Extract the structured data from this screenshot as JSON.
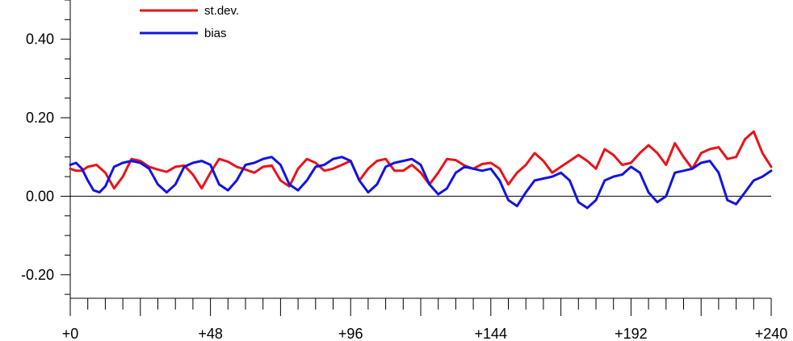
{
  "chart_data": {
    "type": "line",
    "x_tick_labels": [
      "+0",
      "+48",
      "+96",
      "+144",
      "+192",
      "+240"
    ],
    "x_tick_values": [
      0,
      48,
      96,
      144,
      192,
      240
    ],
    "xlim": [
      0,
      240
    ],
    "y_tick_labels": [
      "0.40",
      "0.20",
      "0.00",
      "-0.20"
    ],
    "y_tick_values": [
      0.4,
      0.2,
      0.0,
      -0.2
    ],
    "ylim": [
      -0.26,
      0.5
    ],
    "zero_line": true,
    "legend_position": "top-left",
    "series": [
      {
        "name": "st.dev.",
        "color": "#e8141b",
        "x": [
          0,
          2,
          4,
          6,
          9,
          12,
          15,
          18,
          21,
          24,
          27,
          30,
          33,
          36,
          39,
          42,
          45,
          48,
          51,
          54,
          57,
          60,
          63,
          66,
          69,
          72,
          75,
          78,
          81,
          84,
          87,
          90,
          93,
          96,
          99,
          102,
          105,
          108,
          111,
          114,
          117,
          120,
          123,
          126,
          129,
          132,
          135,
          138,
          141,
          144,
          147,
          150,
          153,
          156,
          159,
          162,
          165,
          168,
          171,
          174,
          177,
          180,
          183,
          186,
          189,
          192,
          195,
          198,
          201,
          204,
          207,
          210,
          213,
          216,
          219,
          222,
          225,
          228,
          231,
          234,
          237,
          240
        ],
        "y": [
          0.07,
          0.065,
          0.065,
          0.075,
          0.08,
          0.06,
          0.02,
          0.05,
          0.095,
          0.09,
          0.075,
          0.068,
          0.062,
          0.075,
          0.078,
          0.055,
          0.02,
          0.06,
          0.095,
          0.088,
          0.075,
          0.068,
          0.06,
          0.075,
          0.078,
          0.04,
          0.025,
          0.07,
          0.095,
          0.085,
          0.065,
          0.07,
          0.08,
          0.09,
          0.04,
          0.07,
          0.09,
          0.095,
          0.065,
          0.065,
          0.08,
          0.06,
          0.03,
          0.06,
          0.095,
          0.092,
          0.078,
          0.07,
          0.082,
          0.085,
          0.07,
          0.03,
          0.06,
          0.08,
          0.11,
          0.09,
          0.06,
          0.075,
          0.09,
          0.105,
          0.09,
          0.07,
          0.12,
          0.105,
          0.08,
          0.085,
          0.11,
          0.13,
          0.11,
          0.08,
          0.135,
          0.1,
          0.07,
          0.11,
          0.12,
          0.125,
          0.095,
          0.1,
          0.145,
          0.165,
          0.11,
          0.075
        ]
      },
      {
        "name": "bias",
        "color": "#1414e0",
        "x": [
          0,
          2,
          4,
          6,
          8,
          10,
          12,
          15,
          18,
          21,
          24,
          27,
          30,
          33,
          36,
          39,
          42,
          45,
          48,
          51,
          54,
          57,
          60,
          63,
          66,
          69,
          72,
          75,
          78,
          81,
          84,
          87,
          90,
          93,
          96,
          99,
          102,
          105,
          108,
          111,
          114,
          117,
          120,
          123,
          126,
          129,
          132,
          135,
          138,
          141,
          144,
          147,
          150,
          153,
          156,
          159,
          162,
          165,
          168,
          171,
          174,
          177,
          180,
          183,
          186,
          189,
          192,
          195,
          198,
          201,
          204,
          207,
          210,
          213,
          216,
          219,
          222,
          225,
          228,
          231,
          234,
          237,
          240
        ],
        "y": [
          0.08,
          0.085,
          0.07,
          0.04,
          0.015,
          0.01,
          0.025,
          0.075,
          0.085,
          0.09,
          0.085,
          0.07,
          0.03,
          0.01,
          0.03,
          0.075,
          0.085,
          0.09,
          0.08,
          0.03,
          0.015,
          0.04,
          0.08,
          0.085,
          0.095,
          0.1,
          0.08,
          0.03,
          0.015,
          0.04,
          0.075,
          0.08,
          0.095,
          0.1,
          0.09,
          0.04,
          0.01,
          0.03,
          0.075,
          0.085,
          0.09,
          0.095,
          0.08,
          0.03,
          0.005,
          0.02,
          0.06,
          0.075,
          0.07,
          0.065,
          0.07,
          0.04,
          -0.01,
          -0.025,
          0.01,
          0.04,
          0.045,
          0.05,
          0.06,
          0.04,
          -0.015,
          -0.03,
          -0.01,
          0.04,
          0.05,
          0.055,
          0.075,
          0.06,
          0.01,
          -0.015,
          0.0,
          0.06,
          0.065,
          0.07,
          0.085,
          0.09,
          0.06,
          -0.01,
          -0.02,
          0.01,
          0.04,
          0.05,
          0.065
        ]
      }
    ]
  }
}
